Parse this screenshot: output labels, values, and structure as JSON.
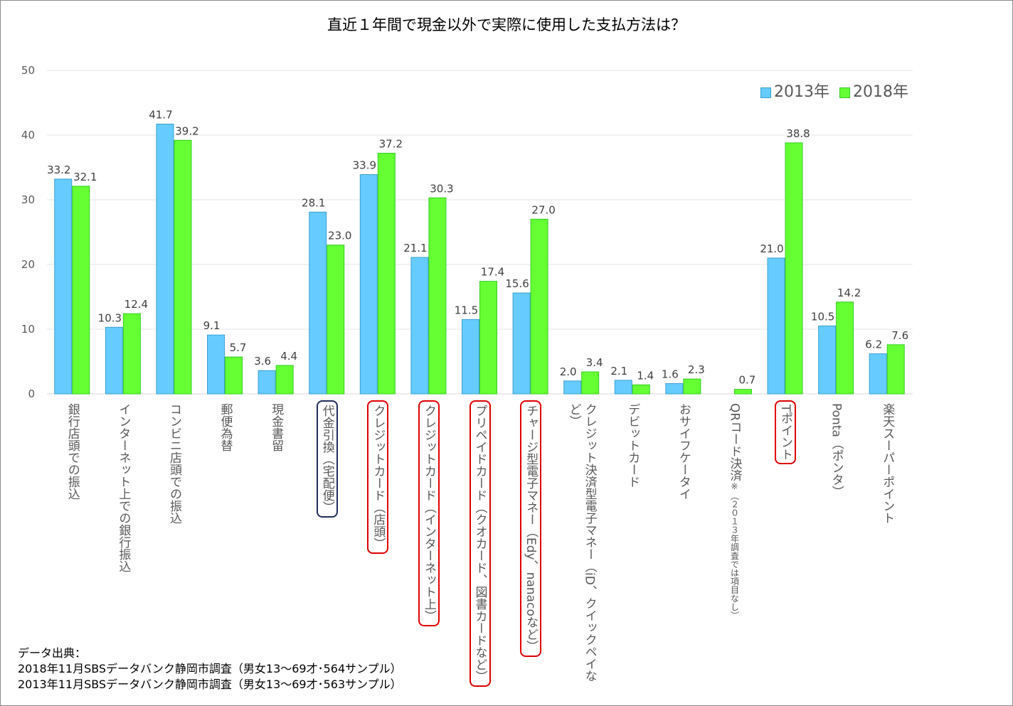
{
  "chart_data": {
    "type": "bar",
    "title": "直近１年間で現金以外で実際に使用した支払方法は？",
    "categories": [
      "銀行店頭での振込",
      "インターネット上での銀行振込",
      "コンビニ店頭での振込",
      "郵便為替",
      "現金書留",
      "代金引換（宅配便）",
      "クレジットカード（店頭）",
      "クレジットカード（インターネット上）",
      "プリペイドカード（クオカード、図書カードなど）",
      "チャージ型電子マネー（Edy、nanacoなど）",
      "クレジット決済型電子マネー（iD、クイックペイなど）",
      "デビットカード",
      "おサイフケータイ",
      "QRコード決済",
      "Tポイント",
      "Ponta（ポンタ）",
      "楽天スーパーポイント"
    ],
    "category_notes": {
      "13": "※（２０１３年調査では項目なし）"
    },
    "highlighted": {
      "5": "#1f2d5a",
      "6": "#e00000",
      "7": "#e00000",
      "8": "#e00000",
      "9": "#e00000",
      "14": "#e00000"
    },
    "series": [
      {
        "name": "2013年",
        "color": "#66ccff",
        "values": [
          33.2,
          10.3,
          41.7,
          9.1,
          3.6,
          28.1,
          33.9,
          21.1,
          11.5,
          15.6,
          2.0,
          2.1,
          1.6,
          null,
          21.0,
          10.5,
          6.2
        ]
      },
      {
        "name": "2018年",
        "color": "#66ff33",
        "values": [
          32.1,
          12.4,
          39.2,
          5.7,
          4.4,
          23.0,
          37.2,
          30.3,
          17.4,
          27.0,
          3.4,
          1.4,
          2.3,
          0.7,
          38.8,
          14.2,
          7.6
        ]
      }
    ],
    "ylim": [
      0,
      50
    ],
    "yticks": [
      "0",
      "10",
      "20",
      "30",
      "40",
      "50"
    ],
    "grid": true,
    "legend": "top-right"
  },
  "source": {
    "heading": "データ出典：",
    "lines": [
      "2018年11月SBSデータバンク静岡市調査（男女13～69才･564サンプル）",
      "2013年11月SBSデータバンク静岡市調査（男女13～69才･563サンプル）"
    ]
  }
}
